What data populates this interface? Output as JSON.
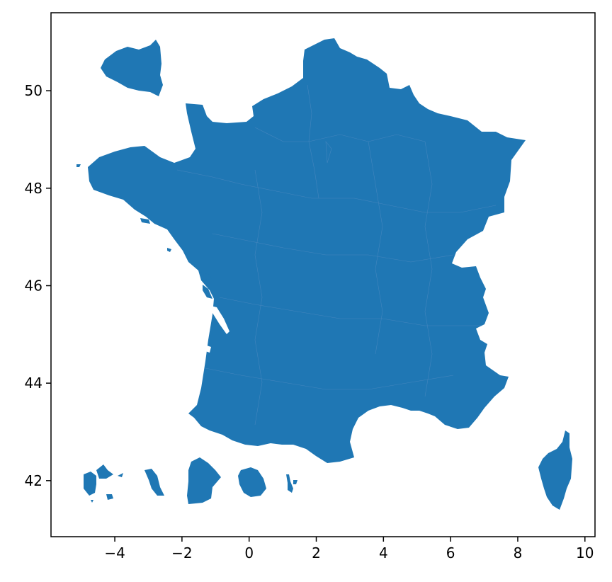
{
  "chart_data": {
    "type": "map",
    "xlim": [
      -5.9,
      10.3
    ],
    "ylim": [
      40.85,
      51.6
    ],
    "xticks": [
      -4,
      -2,
      0,
      2,
      4,
      6,
      8,
      10
    ],
    "xtick_labels": [
      "−4",
      "−2",
      "0",
      "2",
      "4",
      "6",
      "8",
      "10"
    ],
    "yticks": [
      42,
      44,
      46,
      48,
      50
    ],
    "ytick_labels": [
      "42",
      "44",
      "46",
      "48",
      "50"
    ],
    "grid": false,
    "fill_color": "#1f77b4",
    "edge_color": "#5b8fc4",
    "regions": [
      "mainland-france",
      "corsica",
      "channel-islands-inset",
      "overseas-inset-1",
      "overseas-inset-2",
      "overseas-inset-3",
      "overseas-inset-4",
      "overseas-inset-5"
    ]
  }
}
